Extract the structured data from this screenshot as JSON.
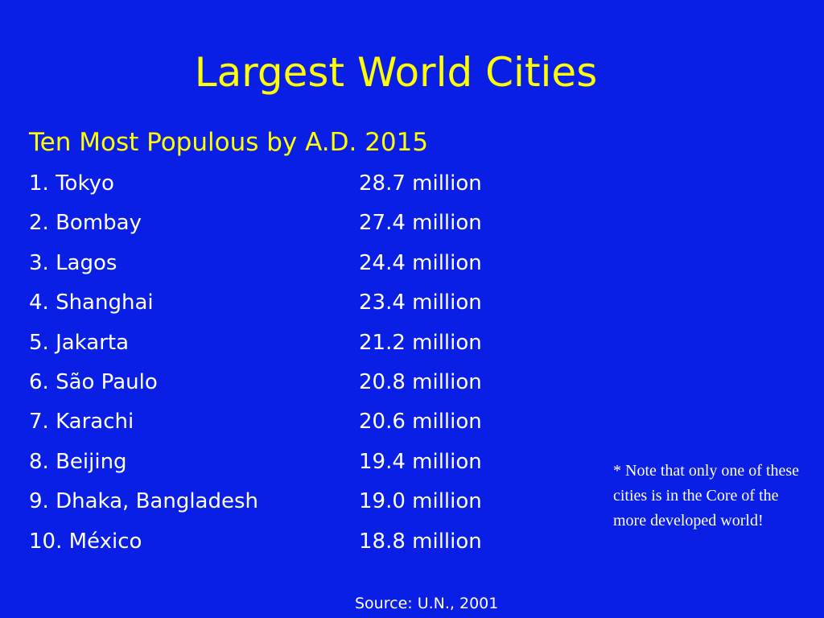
{
  "slide": {
    "title": "Largest World Cities",
    "subtitle": "Ten Most Populous by A.D. 2015",
    "cities": [
      {
        "name": "1. Tokyo",
        "population": "28.7 million"
      },
      {
        "name": "2. Bombay",
        "population": "27.4 million"
      },
      {
        "name": "3. Lagos",
        "population": "24.4 million"
      },
      {
        "name": "4. Shanghai",
        "population": "23.4 million"
      },
      {
        "name": "5. Jakarta",
        "population": "21.2 million"
      },
      {
        "name": "6. São Paulo",
        "population": "20.8 million"
      },
      {
        "name": "7. Karachi",
        "population": "20.6 million"
      },
      {
        "name": "8. Beijing",
        "population": "19.4 million"
      },
      {
        "name": "9. Dhaka, Bangladesh",
        "population": "19.0 million"
      },
      {
        "name": "10. México",
        "population": "18.8 million"
      }
    ],
    "note": "* Note that only one of these cities is in the Core of the more developed world!",
    "source": "Source: U.N., 2001"
  },
  "colors": {
    "background": "#0a1fe6",
    "heading": "#ffff00",
    "body_text": "#ffffff"
  }
}
